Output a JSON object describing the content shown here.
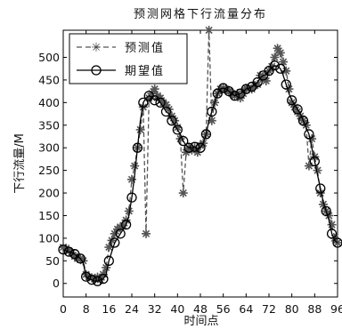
{
  "chart_data": {
    "type": "line",
    "title": "预测网格下行流量分布",
    "xlabel": "时间点",
    "ylabel": "下行流量/M",
    "xlim": [
      0,
      96
    ],
    "ylim": [
      -30,
      560
    ],
    "x_ticks": [
      0,
      8,
      16,
      24,
      32,
      40,
      48,
      56,
      64,
      72,
      80,
      88,
      96
    ],
    "y_ticks": [
      0,
      50,
      100,
      150,
      200,
      250,
      300,
      350,
      400,
      450,
      500
    ],
    "grid": false,
    "legend_position": "top-left",
    "series": [
      {
        "name": "预测值",
        "style": "dashed-star",
        "color": "#555555",
        "x": [
          0,
          1,
          2,
          3,
          4,
          5,
          6,
          7,
          8,
          9,
          10,
          11,
          12,
          13,
          14,
          15,
          16,
          17,
          18,
          19,
          20,
          21,
          22,
          23,
          24,
          25,
          26,
          27,
          28,
          29,
          30,
          31,
          32,
          33,
          34,
          35,
          36,
          37,
          38,
          39,
          40,
          41,
          42,
          43,
          44,
          45,
          46,
          47,
          48,
          49,
          50,
          51,
          52,
          53,
          54,
          55,
          56,
          57,
          58,
          59,
          60,
          61,
          62,
          63,
          64,
          65,
          66,
          67,
          68,
          69,
          70,
          71,
          72,
          73,
          74,
          75,
          76,
          77,
          78,
          79,
          80,
          81,
          82,
          83,
          84,
          85,
          86,
          87,
          88,
          89,
          90,
          91,
          92,
          93,
          94,
          95,
          96
        ],
        "y": [
          80,
          78,
          72,
          68,
          60,
          55,
          55,
          50,
          20,
          15,
          12,
          10,
          14,
          8,
          20,
          35,
          80,
          95,
          110,
          120,
          125,
          128,
          140,
          160,
          230,
          260,
          300,
          340,
          390,
          110,
          410,
          420,
          430,
          415,
          410,
          400,
          395,
          385,
          370,
          360,
          345,
          320,
          200,
          290,
          300,
          295,
          300,
          290,
          305,
          310,
          330,
          560,
          360,
          400,
          420,
          430,
          432,
          430,
          425,
          420,
          415,
          420,
          410,
          420,
          432,
          430,
          430,
          438,
          440,
          460,
          455,
          448,
          470,
          480,
          500,
          520,
          510,
          490,
          470,
          430,
          400,
          390,
          380,
          370,
          360,
          350,
          260,
          320,
          280,
          250,
          200,
          175,
          160,
          150,
          130,
          100,
          90
        ]
      },
      {
        "name": "期望值",
        "style": "solid-circle",
        "color": "#000000",
        "x": [
          0,
          1,
          2,
          3,
          4,
          5,
          6,
          7,
          8,
          9,
          10,
          11,
          12,
          13,
          14,
          15,
          16,
          17,
          18,
          19,
          20,
          21,
          22,
          23,
          24,
          25,
          26,
          27,
          28,
          29,
          30,
          31,
          32,
          33,
          34,
          35,
          36,
          37,
          38,
          39,
          40,
          41,
          42,
          43,
          44,
          45,
          46,
          47,
          48,
          49,
          50,
          51,
          52,
          53,
          54,
          55,
          56,
          57,
          58,
          59,
          60,
          61,
          62,
          63,
          64,
          65,
          66,
          67,
          68,
          69,
          70,
          71,
          72,
          73,
          74,
          75,
          76,
          77,
          78,
          79,
          80,
          81,
          82,
          83,
          84,
          85,
          86,
          87,
          88,
          89,
          90,
          91,
          92,
          93,
          94,
          95,
          96
        ],
        "y": [
          75,
          72,
          70,
          68,
          65,
          60,
          55,
          45,
          15,
          10,
          8,
          5,
          5,
          8,
          10,
          20,
          50,
          70,
          90,
          100,
          110,
          120,
          130,
          150,
          190,
          240,
          300,
          360,
          400,
          410,
          415,
          412,
          405,
          410,
          400,
          390,
          380,
          375,
          360,
          350,
          340,
          330,
          315,
          305,
          300,
          300,
          302,
          298,
          300,
          310,
          330,
          360,
          380,
          400,
          420,
          430,
          432,
          430,
          425,
          420,
          415,
          418,
          420,
          425,
          430,
          432,
          435,
          440,
          445,
          455,
          460,
          462,
          470,
          478,
          482,
          480,
          475,
          460,
          440,
          420,
          405,
          395,
          385,
          375,
          360,
          345,
          330,
          300,
          270,
          240,
          210,
          180,
          160,
          140,
          110,
          95,
          90
        ]
      }
    ]
  }
}
